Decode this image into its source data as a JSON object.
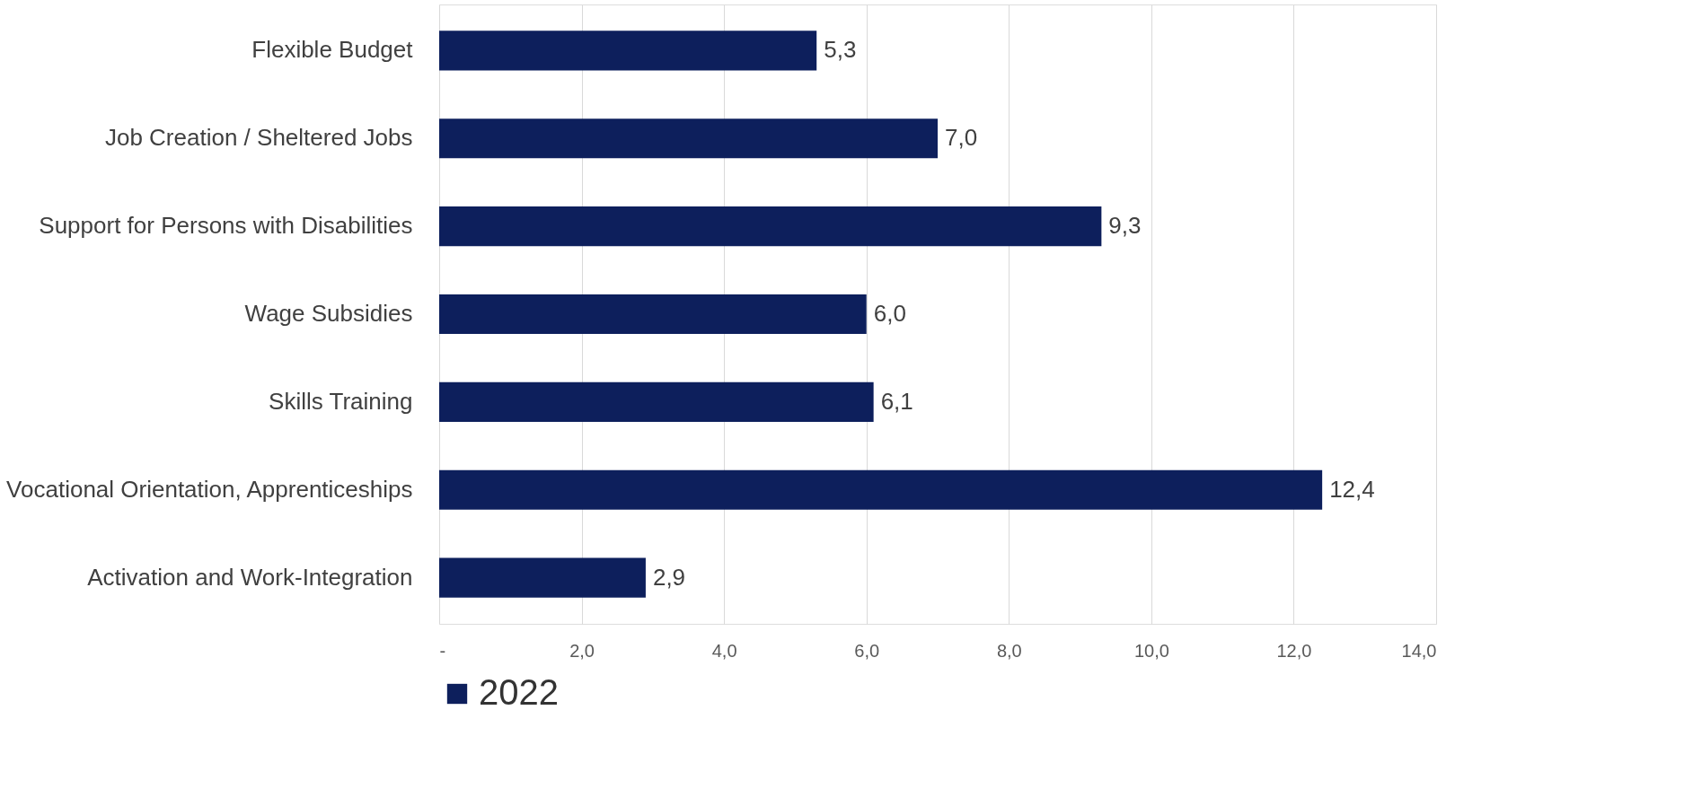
{
  "chart_data": {
    "type": "bar",
    "orientation": "horizontal",
    "categories": [
      "Flexible Budget",
      "Job Creation / Sheltered Jobs",
      "Support for Persons with Disabilities",
      "Wage Subsidies",
      "Skills Training",
      "Vocational Orientation, Apprenticeships",
      "Activation and Work-Integration"
    ],
    "series": [
      {
        "name": "2022",
        "color": "#0d1f5c",
        "values": [
          5.3,
          7.0,
          9.3,
          6.0,
          6.1,
          12.4,
          2.9
        ],
        "value_labels": [
          "5,3",
          "7,0",
          "9,3",
          "6,0",
          "6,1",
          "12,4",
          "2,9"
        ]
      }
    ],
    "xlim": [
      0,
      14
    ],
    "xticks": [
      {
        "value": 0,
        "label": "-"
      },
      {
        "value": 2,
        "label": "2,0"
      },
      {
        "value": 4,
        "label": "4,0"
      },
      {
        "value": 6,
        "label": "6,0"
      },
      {
        "value": 8,
        "label": "8,0"
      },
      {
        "value": 10,
        "label": "10,0"
      },
      {
        "value": 12,
        "label": "12,0"
      },
      {
        "value": 14,
        "label": "14,0"
      }
    ],
    "grid": "x",
    "legend": "bottom"
  }
}
